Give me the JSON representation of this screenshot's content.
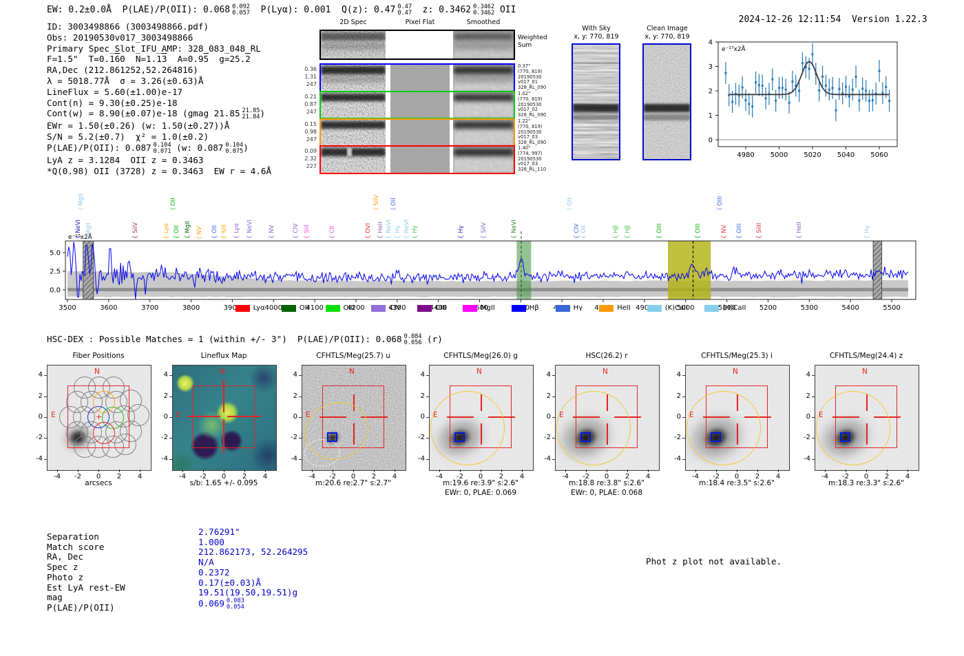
{
  "meta": {
    "timestamp": "2024-12-26 12:11:54",
    "version": "Version 1.22.3"
  },
  "header": {
    "parts": [
      {
        "t": "EW: 0.2±0.0Å  P(LAE)/P(OII): 0.068"
      },
      {
        "frac": [
          "0.092",
          "0.057"
        ]
      },
      {
        "t": "  P(Lyα): 0.001  Q(z): 0.47"
      },
      {
        "frac": [
          "0.47",
          "0.47"
        ]
      },
      {
        "t": "  z: 0.3462"
      },
      {
        "frac": [
          "0.3462",
          "0.3462"
        ]
      },
      {
        "t": " OII"
      }
    ]
  },
  "info_block": {
    "lines": [
      [
        {
          "t": "ID: 3003498866 (3003498866.pdf)"
        }
      ],
      [
        {
          "t": "Obs: 20190530v017_3003498866"
        }
      ],
      [
        {
          "t": "Primary Spec_Slot_IFU_AMP: 328_083_048_RL"
        }
      ],
      [
        {
          "t": "F=1.5\"  T=0.1"
        },
        {
          "t": "6",
          "ov": true
        },
        {
          "t": "0  N=1.1"
        },
        {
          "t": "3",
          "ov": true
        },
        {
          "t": "  A=0.9"
        },
        {
          "t": "5",
          "ov": true
        },
        {
          "t": "  g=25."
        },
        {
          "t": "2",
          "ov": true
        }
      ],
      [
        {
          "t": "RA,Dec (212.861252,52.264816)"
        }
      ],
      [
        {
          "t": "λ = 5018.77Å  σ = 3.26(±0.63)Å"
        }
      ],
      [
        {
          "t": "LineFlux = 5.60(±1.00)e-17"
        }
      ],
      [
        {
          "t": "Cont(n) = 9.30(±0.25)e-18"
        }
      ],
      [
        {
          "t": "Cont(w) = 8.90(±0.07)e-18 (gmag 21.85"
        },
        {
          "frac": [
            "21.85",
            "21.84"
          ]
        },
        {
          "t": ")"
        }
      ],
      [
        {
          "t": "EWr = 1.50(±0.26) (w: 1.50(±0.27))Å"
        }
      ],
      [
        {
          "t": "S/N = 5.2(±0.7)  χ² = 1.0(±0.2)"
        }
      ],
      [
        {
          "t": "P(LAE)/P(OII): 0.087"
        },
        {
          "frac": [
            "0.104",
            "0.071"
          ]
        },
        {
          "t": " (w: 0.087"
        },
        {
          "frac": [
            "0.104",
            "0.075"
          ]
        },
        {
          "t": ")"
        }
      ],
      [
        {
          "t": "LyA z = 3.1284  OII z = 0.3463"
        }
      ],
      [
        {
          "t": "*Q(0.98) OII (3728) z = 0.3463  EW r = 4.6Å"
        }
      ]
    ]
  },
  "spec2d": {
    "col_titles": [
      "2D Spec",
      "Pixel Flat",
      "Smoothed"
    ],
    "rows": [
      {
        "border": "#000000",
        "left": [],
        "right": [
          "Weighted",
          "Sum"
        ],
        "weighted": true
      },
      {
        "border": "#0000ff",
        "left": [
          "0.36",
          "1.31",
          "247"
        ],
        "right": [
          "0.37\"",
          "(770, 819)",
          "20190530",
          "v017_01",
          "328_RL_090"
        ]
      },
      {
        "border": "#00cc00",
        "left": [
          "0.21",
          "0.87",
          "247"
        ],
        "right": [
          "1.02\"",
          "(770, 819)",
          "20190530",
          "v017_02",
          "328_RL_090"
        ]
      },
      {
        "border": "#ff9900",
        "left": [
          "0.15",
          "0.98",
          "247"
        ],
        "right": [
          "1.22\"",
          "(770, 819)",
          "20190530",
          "v017_03",
          "328_RL_090"
        ]
      },
      {
        "border": "#ff0000",
        "left": [
          "0.09",
          "2.32",
          "227"
        ],
        "right": [
          "1.40\"",
          "(774, 997)",
          "20190530",
          "v017_03",
          "328_RL_110"
        ]
      }
    ]
  },
  "sky_panels": [
    {
      "title": "With Sky",
      "subtitle": "x, y: 770, 819"
    },
    {
      "title": "Clean Image",
      "subtitle": "x, y: 770, 819"
    }
  ],
  "line_labels": [
    {
      "name": "MgII",
      "bracket": "(",
      "lam": 3550,
      "color": "#8ec8e8",
      "raised": true
    },
    {
      "name": "NeVI",
      "bracket": "{",
      "lam": 3543,
      "color": "#1a1ab0",
      "raised": false
    },
    {
      "name": "MgII",
      "bracket": "(",
      "lam": 3568,
      "color": "#8ec8e8",
      "raised": false
    },
    {
      "name": "SiIV",
      "bracket": "{",
      "lam": 3682,
      "color": "#a03060",
      "raised": false
    },
    {
      "name": "Lyα",
      "bracket": "{",
      "lam": 3757,
      "color": "#ff9f00",
      "raised": false
    },
    {
      "name": "OII",
      "bracket": "(",
      "lam": 3774,
      "color": "#00b400",
      "raised": true
    },
    {
      "name": "OII",
      "bracket": "{",
      "lam": 3782,
      "color": "#00b400",
      "raised": false
    },
    {
      "name": "MgII",
      "bracket": "{",
      "lam": 3809,
      "color": "#0b6b0b",
      "raised": false
    },
    {
      "name": "NV",
      "bracket": "(",
      "lam": 3838,
      "color": "#ff9f00",
      "raised": false
    },
    {
      "name": "OII",
      "bracket": "{",
      "lam": 3874,
      "color": "#4169e1",
      "raised": false
    },
    {
      "name": "SiII",
      "bracket": "{",
      "lam": 3898,
      "color": "#ff9f00",
      "raised": false
    },
    {
      "name": "Lyα",
      "bracket": "{",
      "lam": 3928,
      "color": "#8a5fc8",
      "raised": false
    },
    {
      "name": "NeVI",
      "bracket": "{",
      "lam": 3960,
      "color": "#7b68ee",
      "raised": false
    },
    {
      "name": "NV",
      "bracket": "{",
      "lam": 4013,
      "color": "#8a5fc8",
      "raised": false
    },
    {
      "name": "CIV",
      "bracket": "{",
      "lam": 4071,
      "color": "#8a5fc8",
      "raised": false
    },
    {
      "name": "SiII",
      "bracket": "{",
      "lam": 4098,
      "color": "#e544e5",
      "raised": false
    },
    {
      "name": "CII",
      "bracket": "{",
      "lam": 4160,
      "color": "#e544e5",
      "raised": false
    },
    {
      "name": "OVI",
      "bracket": "{",
      "lam": 4247,
      "color": "#e03030",
      "raised": false
    },
    {
      "name": "SiIV",
      "bracket": "(",
      "lam": 4266,
      "color": "#ff9f00",
      "raised": true
    },
    {
      "name": "HeII",
      "bracket": "{",
      "lam": 4277,
      "color": "#8a5fc8",
      "raised": false
    },
    {
      "name": "NeVI",
      "bracket": "{",
      "lam": 4297,
      "color": "#8ec8e8",
      "raised": false
    },
    {
      "name": "OII",
      "bracket": "(",
      "lam": 4309,
      "color": "#4169e1",
      "raised": true
    },
    {
      "name": "Hγ",
      "bracket": "{",
      "lam": 4318,
      "color": "#8ec8e8",
      "raised": false
    },
    {
      "name": "NeVI",
      "bracket": "{",
      "lam": 4340,
      "color": "#8ec8e8",
      "raised": false
    },
    {
      "name": "Hγ",
      "bracket": "{",
      "lam": 4361,
      "color": "#49c249",
      "raised": false
    },
    {
      "name": "Hγ",
      "bracket": "{",
      "lam": 4472,
      "color": "#2929c8",
      "raised": false
    },
    {
      "name": "SiIV",
      "bracket": "{",
      "lam": 4527,
      "color": "#8a5fc8",
      "raised": false
    },
    {
      "name": "NeVI",
      "bracket": "{",
      "lam": 4601,
      "color": "#2e8b2e",
      "raised": false
    },
    {
      "name": "OII",
      "bracket": "(",
      "lam": 4737,
      "color": "#8ec8e8",
      "raised": true
    },
    {
      "name": "CIV",
      "bracket": "{",
      "lam": 4753,
      "color": "#4169e1",
      "raised": false
    },
    {
      "name": "OII",
      "bracket": "{",
      "lam": 4770,
      "color": "#8ec8e8",
      "raised": false
    },
    {
      "name": "Hβ",
      "bracket": "{",
      "lam": 4849,
      "color": "#49c249",
      "raised": false
    },
    {
      "name": "Hβ",
      "bracket": "{",
      "lam": 4877,
      "color": "#49c249",
      "raised": false
    },
    {
      "name": "OIII",
      "bracket": "{",
      "lam": 4953,
      "color": "#00b400",
      "raised": false
    },
    {
      "name": "OIII",
      "bracket": "{",
      "lam": 5047,
      "color": "#00b400",
      "raised": false
    },
    {
      "name": "OIII",
      "bracket": "(",
      "lam": 5100,
      "color": "#4169e1",
      "raised": true
    },
    {
      "name": "NV",
      "bracket": "{",
      "lam": 5110,
      "color": "#e03030",
      "raised": false
    },
    {
      "name": "OIII",
      "bracket": "{",
      "lam": 5148,
      "color": "#4169e1",
      "raised": false
    },
    {
      "name": "SiIII",
      "bracket": "{",
      "lam": 5196,
      "color": "#e03030",
      "raised": false
    },
    {
      "name": "HeII",
      "bracket": "{",
      "lam": 5292,
      "color": "#8a5fc8",
      "raised": false
    },
    {
      "name": "Hγ",
      "bracket": "{",
      "lam": 5458,
      "color": "#8ec8e8",
      "raised": false
    }
  ],
  "legend": [
    {
      "label": "Lyα",
      "color": "#ff0000"
    },
    {
      "label": "OII",
      "color": "#006400"
    },
    {
      "label": "OIII",
      "color": "#00e000"
    },
    {
      "label": "CIV",
      "color": "#9370db"
    },
    {
      "label": "CIII",
      "color": "#7b0d87"
    },
    {
      "label": "MgII",
      "color": "#ff00ff"
    },
    {
      "label": "Hβ",
      "color": "#0000ff"
    },
    {
      "label": "Hγ",
      "color": "#3b66d9"
    },
    {
      "label": "HeII",
      "color": "#ff9900"
    },
    {
      "label": "(K)CaII",
      "color": "#87ceeb"
    },
    {
      "label": "(H)CaII",
      "color": "#87ceeb"
    }
  ],
  "hsc_line": {
    "parts": [
      {
        "t": "HSC-DEX : Possible Matches = 1 (within +/- 3\")  P(LAE)/P(OII): 0.068"
      },
      {
        "frac": [
          "0.084",
          "0.056"
        ]
      },
      {
        "t": " (r)"
      }
    ]
  },
  "cutout_section": {
    "ticks": [
      "-4",
      "-2",
      "0",
      "2",
      "4"
    ],
    "compass": {
      "n": "N",
      "e": "E"
    },
    "panels": [
      {
        "type": "fiber",
        "title": "Fiber Positions",
        "xlabel": "arcsecs",
        "caption": "",
        "caption2": ""
      },
      {
        "type": "lineflux",
        "title": "Lineflux Map",
        "xlabel": "s/b: 1.65 +/- 0.095",
        "caption": "",
        "caption2": ""
      },
      {
        "type": "image",
        "band": "u",
        "title": "CFHTLS/Meg(25.7) u",
        "caption": "m:20.6  re:2.7\"  s:2.7\"",
        "caption2": ""
      },
      {
        "type": "image",
        "band": "g",
        "title": "CFHTLS/Meg(26.0) g",
        "caption": "m:19.6  re:3.9\"  s:2.6\"",
        "caption2": "EWr: 0, PLAE: 0.069"
      },
      {
        "type": "image",
        "band": "r",
        "title": "HSC(26.2) r",
        "caption": "m:18.8  re:3.8\"  s:2.6\"",
        "caption2": "EWr: 0, PLAE: 0.068"
      },
      {
        "type": "image",
        "band": "i",
        "title": "CFHTLS/Meg(25.3) i",
        "caption": "m:18.4  re:3.5\"  s:2.6\"",
        "caption2": ""
      },
      {
        "type": "image",
        "band": "z",
        "title": "CFHTLS/Meg(24.4) z",
        "caption": "m:18.3  re:3.3\"  s:2.6\"",
        "caption2": ""
      }
    ]
  },
  "match_table": {
    "value_color": "#0000cc",
    "rows": [
      {
        "label": "Separation",
        "parts": [
          {
            "t": "2.76291\""
          }
        ]
      },
      {
        "label": "Match score",
        "parts": [
          {
            "t": "1.000"
          }
        ]
      },
      {
        "label": "RA, Dec",
        "parts": [
          {
            "t": "212.862173, 52.264295"
          }
        ]
      },
      {
        "label": "Spec z",
        "parts": [
          {
            "t": "N/A"
          }
        ]
      },
      {
        "label": "Photo z",
        "parts": [
          {
            "t": "0.2372"
          }
        ]
      },
      {
        "label": "Est LyA rest-EW",
        "parts": [
          {
            "t": "0.17(±0.03)Å"
          }
        ]
      },
      {
        "label": "mag",
        "parts": [
          {
            "t": "19.51(19.50,19.51)g"
          }
        ]
      },
      {
        "label": "P(LAE)/P(OII)",
        "parts": [
          {
            "t": "0.069"
          },
          {
            "frac": [
              "0.083",
              "0.054"
            ]
          }
        ]
      }
    ]
  },
  "photz_note": "Phot z plot not available.",
  "chart_data": [
    {
      "id": "gaussian_fit_inset",
      "type": "scatter",
      "annotation": "e⁻¹⁷x2Å",
      "xlim": [
        4963,
        5071
      ],
      "ylim": [
        -0.3,
        4
      ],
      "xticks": [
        4980,
        5000,
        5020,
        5040,
        5060
      ],
      "yticks": [
        0,
        1,
        2,
        3,
        4
      ],
      "grid": false,
      "series": [
        {
          "name": "spectrum_points",
          "style": "errorbar",
          "color": "#2878b5",
          "x_start": 4968,
          "x_step": 2,
          "n": 50,
          "baseline": 1.85,
          "noise_sigma": 0.32,
          "error_bar": 0.45,
          "outlier": {
            "x": 5046,
            "dy": 0.9
          },
          "seed": 7
        },
        {
          "name": "gaussian_fit",
          "style": "line",
          "color": "#3c3c3c",
          "baseline": 1.85,
          "amplitude": 1.35,
          "center": 5018,
          "sigma": 4.5
        }
      ]
    },
    {
      "id": "full_spectrum",
      "type": "line",
      "annotation": "e⁻¹⁷x2Å",
      "xlim": [
        3495,
        5585
      ],
      "x_range": [
        3500,
        5540
      ],
      "ylim": [
        -1.4,
        6.6
      ],
      "xticks": [
        3500,
        3600,
        3700,
        3800,
        3900,
        4000,
        4100,
        4200,
        4300,
        4400,
        4500,
        4600,
        4700,
        4800,
        4900,
        5000,
        5100,
        5200,
        5300,
        5400,
        5500
      ],
      "yticks": [
        0.0,
        2.5,
        5.0
      ],
      "line_color": "#0000ee",
      "seed": 11,
      "continuum": {
        "left": 1.95,
        "mid": 1.6,
        "right": 2.1
      },
      "noise_sigma": [
        [
          3650,
          0.78
        ],
        [
          3950,
          0.5
        ],
        [
          5600,
          0.34
        ]
      ],
      "peaks": [
        {
          "c": 4601,
          "a": 2.7,
          "s": 5
        },
        {
          "c": 5018,
          "a": 1.05,
          "s": 9
        },
        {
          "c": 3503,
          "a": 4.5,
          "s": 4
        },
        {
          "c": 3516,
          "a": 5.0,
          "s": 3
        },
        {
          "c": 3547,
          "a": 3.6,
          "s": 3
        },
        {
          "c": 3561,
          "a": 4.2,
          "s": 3
        },
        {
          "c": 3603,
          "a": 3.2,
          "s": 3
        },
        {
          "c": 3650,
          "a": 2.4,
          "s": 3
        },
        {
          "c": 3525,
          "a": -3.0,
          "s": 2.5
        },
        {
          "c": 3570,
          "a": -2.6,
          "s": 2
        },
        {
          "c": 3665,
          "a": -2.5,
          "s": 2.5
        },
        {
          "c": 3730,
          "a": 1.2,
          "s": 3
        },
        {
          "c": 3820,
          "a": 1.3,
          "s": 3
        },
        {
          "c": 3690,
          "a": -1.6,
          "s": 2
        }
      ],
      "error_band": {
        "color": "#c9c9c9",
        "bottom": -0.95,
        "top_profile": [
          [
            3500,
            2.5
          ],
          [
            3750,
            2.35
          ],
          [
            4020,
            1.25
          ],
          [
            4400,
            1.18
          ],
          [
            5540,
            1.25
          ]
        ]
      },
      "zero_line_color": "#8f8f8f",
      "highlight_bands": [
        {
          "x0": 3538,
          "x1": 3563,
          "style": "hatched"
        },
        {
          "x0": 4590,
          "x1": 4625,
          "style": "green",
          "line": 4601,
          "line_color": "#1e5c1e"
        },
        {
          "x0": 4957,
          "x1": 5061,
          "style": "olive",
          "line": 5018,
          "line_color": "#000000"
        },
        {
          "x0": 5455,
          "x1": 5476,
          "style": "hatched"
        }
      ]
    },
    {
      "id": "fiber_positions",
      "type": "scatter",
      "title": "Fiber Positions",
      "xlabel": "arcsecs",
      "xlim": [
        -5,
        5
      ],
      "ylim": [
        -5,
        5
      ],
      "gray_fibers": [
        [
          -1.35,
          2.85
        ],
        [
          0.05,
          2.85
        ],
        [
          1.45,
          2.85
        ],
        [
          -2.05,
          1.43
        ],
        [
          -0.65,
          1.43
        ],
        [
          1.75,
          1.43
        ],
        [
          3.15,
          1.55
        ],
        [
          -2.75,
          0.0
        ],
        [
          -1.4,
          0.0
        ],
        [
          2.45,
          0.05
        ],
        [
          3.85,
          0.2
        ],
        [
          -2.05,
          -1.43
        ],
        [
          -0.7,
          -1.43
        ],
        [
          1.75,
          -1.43
        ],
        [
          3.15,
          -1.35
        ],
        [
          -1.35,
          -2.85
        ],
        [
          0.0,
          -2.85
        ],
        [
          1.4,
          -2.85
        ],
        [
          2.6,
          -2.6
        ]
      ],
      "blue_fiber": [
        0.0,
        0.0
      ],
      "green_fiber": [
        1.4,
        -0.05
      ],
      "orange_fiber": [
        0.55,
        1.43
      ],
      "red_fiber": [
        0.55,
        -1.5
      ],
      "fiber_radius_arcsec": 1.05
    },
    {
      "id": "lineflux_map",
      "type": "heatmap",
      "title": "Lineflux Map",
      "xlabel": "s/b: 1.65 +/- 0.095",
      "colormap": "viridis",
      "xlim": [
        -5,
        5
      ],
      "ylim": [
        -5,
        5
      ],
      "bright_blobs": [
        [
          -4.2,
          1.7
        ],
        [
          0.2,
          0.4
        ]
      ],
      "dark_patches": [
        [
          -1.5,
          -2.3
        ],
        [
          0.6,
          -2.1
        ]
      ]
    }
  ]
}
